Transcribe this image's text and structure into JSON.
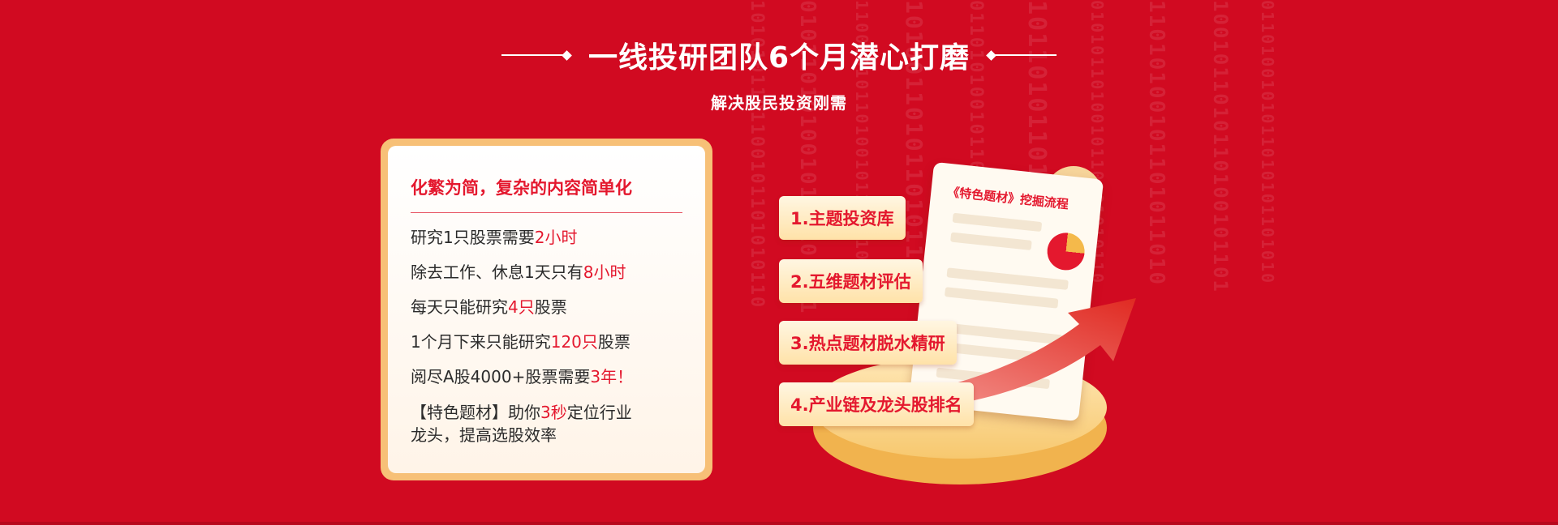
{
  "header": {
    "title": "一线投研团队6个月潜心打磨",
    "subtitle": "解决股民投资刚需"
  },
  "card": {
    "title": "化繁为简，复杂的内容简单化",
    "lines": [
      {
        "before": "研究1只股票需要",
        "highlight": "2小时",
        "after": ""
      },
      {
        "before": "除去工作、休息1天只有",
        "highlight": "8小时",
        "after": ""
      },
      {
        "before": "每天只能研究",
        "highlight": "4只",
        "after": "股票"
      },
      {
        "before": "1个月下来只能研究",
        "highlight": "120只",
        "after": "股票"
      },
      {
        "before": "阅尽A股4000+股票需要",
        "highlight": "3年！",
        "after": ""
      }
    ],
    "last": {
      "before": "【特色题材】助你",
      "highlight": "3秒",
      "after": "定位行业",
      "line2": "龙头，提高选股效率"
    }
  },
  "illustration": {
    "doc_title": "《特色题材》挖掘流程",
    "steps": [
      "1.主题投资库",
      "2.五维题材评估",
      "3.热点题材脱水精研",
      "4.产业链及龙头股排名"
    ]
  },
  "colors": {
    "background": "#d10a21",
    "highlight": "#e4182e",
    "card_border": "#f7c077",
    "platform": "#f7c86f"
  }
}
